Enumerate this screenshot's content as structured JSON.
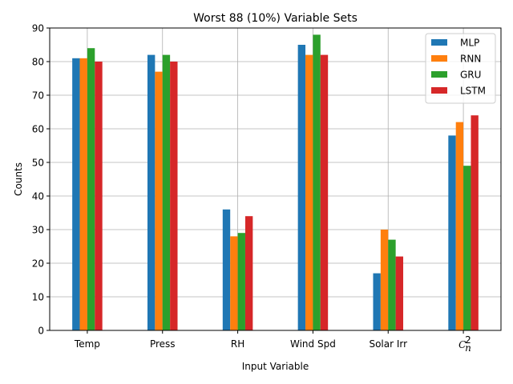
{
  "chart_data": {
    "type": "bar",
    "title": "Worst 88 (10%) Variable Sets",
    "xlabel": "Input Variable",
    "ylabel": "Counts",
    "categories": [
      "Temp",
      "Press",
      "RH",
      "Wind Spd",
      "Solar Irr",
      "C_n^2"
    ],
    "category_display": {
      "C_n^2": {
        "base": "C",
        "sub": "n",
        "sup": "2"
      }
    },
    "series": [
      {
        "name": "MLP",
        "color": "#1f77b4",
        "values": [
          81,
          82,
          36,
          85,
          17,
          58
        ]
      },
      {
        "name": "RNN",
        "color": "#ff7f0e",
        "values": [
          81,
          77,
          28,
          82,
          30,
          62
        ]
      },
      {
        "name": "GRU",
        "color": "#2ca02c",
        "values": [
          84,
          82,
          29,
          88,
          27,
          49
        ]
      },
      {
        "name": "LSTM",
        "color": "#d62728",
        "values": [
          80,
          80,
          34,
          82,
          22,
          64
        ]
      }
    ],
    "ylim": [
      0,
      90
    ],
    "yticks": [
      0,
      10,
      20,
      30,
      40,
      50,
      60,
      70,
      80,
      90
    ],
    "grid": true,
    "legend_position": "top-right"
  }
}
